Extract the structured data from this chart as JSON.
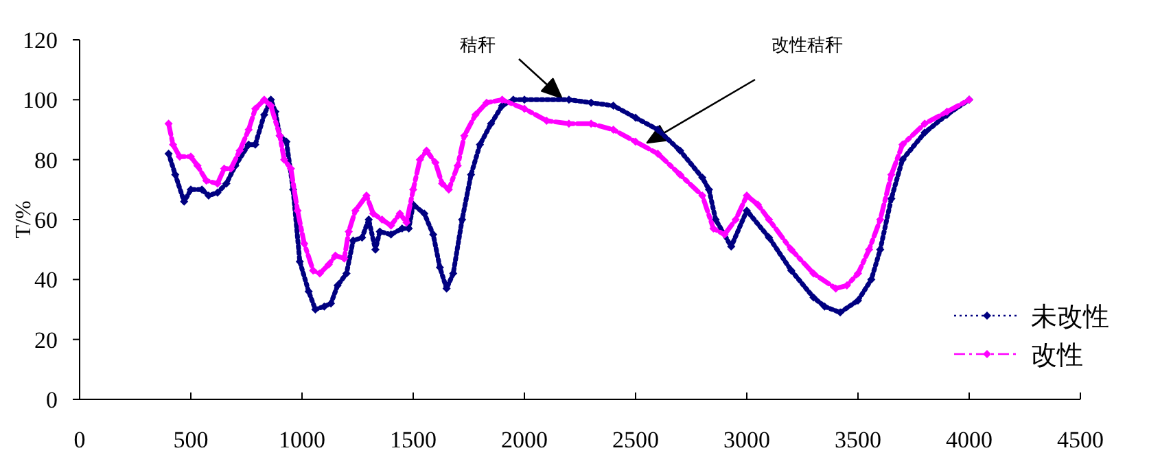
{
  "chart_data": {
    "type": "line",
    "ylabel": "T/%",
    "xlim": [
      0,
      4500
    ],
    "ylim": [
      0,
      120
    ],
    "xticks": [
      0,
      500,
      1000,
      1500,
      2000,
      2500,
      3000,
      3500,
      4000,
      4500
    ],
    "yticks": [
      0,
      20,
      40,
      60,
      80,
      100,
      120
    ],
    "grid": false,
    "legend": "bottom right",
    "marker": "diamond",
    "annotations": [
      "秸秆",
      "改性秸秆"
    ],
    "series": [
      {
        "name": "未改性",
        "color": "#000080",
        "line_style": "dotted",
        "x": [
          400,
          430,
          470,
          500,
          550,
          580,
          620,
          660,
          700,
          760,
          790,
          830,
          860,
          880,
          900,
          930,
          960,
          990,
          1030,
          1060,
          1100,
          1130,
          1160,
          1200,
          1230,
          1270,
          1300,
          1330,
          1350,
          1400,
          1450,
          1480,
          1500,
          1550,
          1590,
          1620,
          1650,
          1680,
          1720,
          1760,
          1800,
          1850,
          1900,
          1950,
          2000,
          2200,
          2300,
          2400,
          2500,
          2600,
          2700,
          2800,
          2830,
          2860,
          2930,
          3000,
          3100,
          3200,
          3300,
          3350,
          3420,
          3500,
          3560,
          3600,
          3650,
          3700,
          3800,
          3900,
          4000
        ],
        "values": [
          82,
          75,
          66,
          70,
          70,
          68,
          69,
          72,
          78,
          85,
          85,
          95,
          100,
          96,
          88,
          86,
          70,
          46,
          36,
          30,
          31,
          32,
          38,
          42,
          53,
          54,
          60,
          50,
          56,
          55,
          57,
          57,
          65,
          62,
          55,
          44,
          37,
          42,
          60,
          75,
          85,
          92,
          98,
          100,
          100,
          100,
          99,
          98,
          94,
          90,
          83,
          74,
          70,
          60,
          51,
          63,
          54,
          43,
          34,
          31,
          29,
          33,
          40,
          50,
          67,
          80,
          89,
          95,
          100
        ]
      },
      {
        "name": "改性",
        "color": "#ff00ff",
        "line_style": "dashed",
        "x": [
          400,
          420,
          450,
          500,
          530,
          570,
          620,
          650,
          680,
          720,
          760,
          790,
          830,
          860,
          900,
          920,
          950,
          980,
          1010,
          1050,
          1080,
          1120,
          1150,
          1190,
          1210,
          1240,
          1290,
          1320,
          1360,
          1400,
          1440,
          1470,
          1500,
          1530,
          1560,
          1600,
          1630,
          1660,
          1700,
          1730,
          1780,
          1830,
          1900,
          2000,
          2100,
          2200,
          2300,
          2400,
          2500,
          2600,
          2700,
          2800,
          2850,
          2900,
          2950,
          3000,
          3050,
          3100,
          3200,
          3300,
          3400,
          3450,
          3500,
          3550,
          3600,
          3650,
          3700,
          3800,
          3900,
          4000
        ],
        "values": [
          92,
          85,
          81,
          81,
          78,
          73,
          72,
          77,
          77,
          83,
          90,
          97,
          100,
          98,
          88,
          80,
          77,
          63,
          52,
          43,
          42,
          45,
          48,
          47,
          56,
          63,
          68,
          62,
          60,
          58,
          62,
          59,
          70,
          80,
          83,
          79,
          72,
          70,
          78,
          88,
          95,
          99,
          100,
          97,
          93,
          92,
          92,
          90,
          86,
          82,
          75,
          68,
          57,
          55,
          60,
          68,
          65,
          60,
          50,
          42,
          37,
          38,
          42,
          50,
          60,
          75,
          85,
          92,
          96,
          100
        ]
      }
    ]
  }
}
